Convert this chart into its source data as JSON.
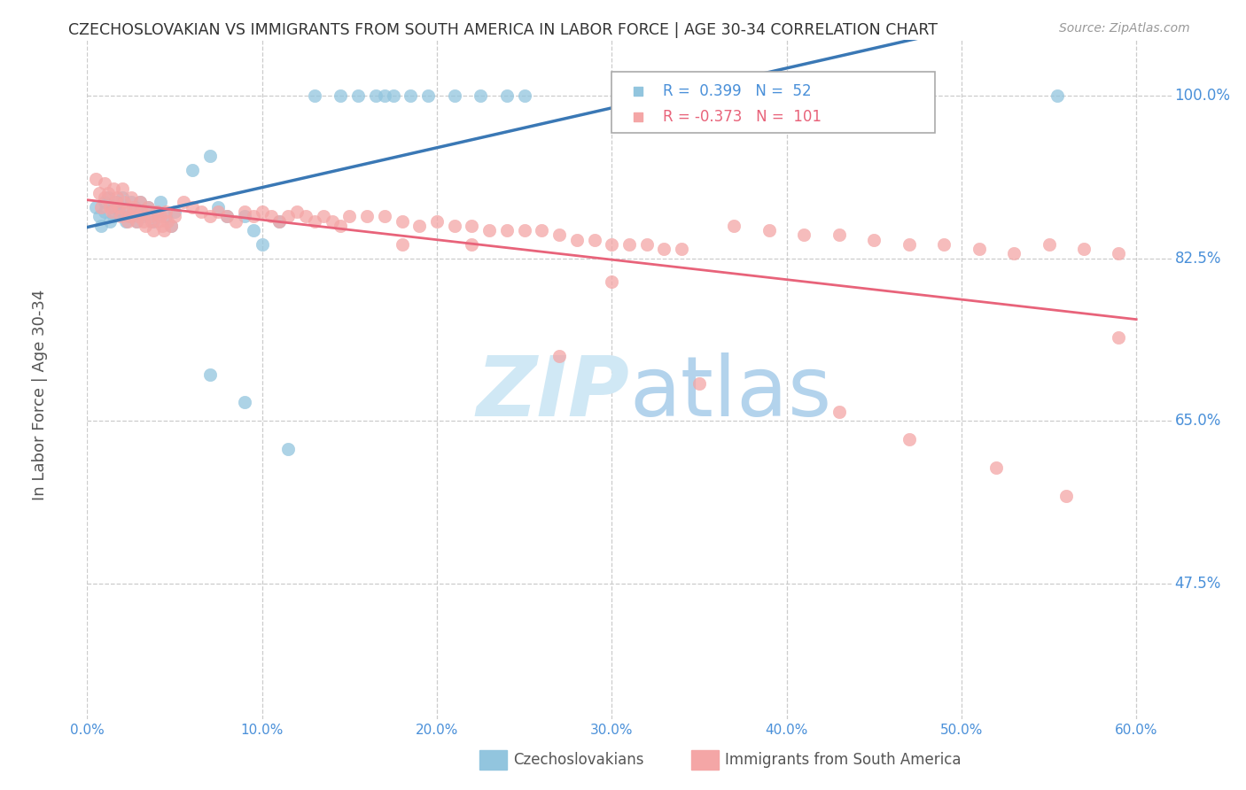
{
  "title": "CZECHOSLOVAKIAN VS IMMIGRANTS FROM SOUTH AMERICA IN LABOR FORCE | AGE 30-34 CORRELATION CHART",
  "source": "Source: ZipAtlas.com",
  "ylabel": "In Labor Force | Age 30-34",
  "xlabel_ticks": [
    "0.0%",
    "10.0%",
    "20.0%",
    "30.0%",
    "40.0%",
    "50.0%",
    "60.0%"
  ],
  "ylabel_ticks_vals": [
    0.475,
    0.65,
    0.825,
    1.0
  ],
  "ylabel_ticks_labels": [
    "47.5%",
    "65.0%",
    "82.5%",
    "100.0%"
  ],
  "xlim": [
    0.0,
    0.62
  ],
  "ylim": [
    0.33,
    1.06
  ],
  "legend_blue_label": "Czechoslovakians",
  "legend_pink_label": "Immigrants from South America",
  "blue_R": 0.399,
  "blue_N": 52,
  "pink_R": -0.373,
  "pink_N": 101,
  "blue_color": "#92c5de",
  "pink_color": "#f4a6a6",
  "blue_line_color": "#3a78b5",
  "pink_line_color": "#e8637a",
  "grid_color": "#cccccc",
  "background_color": "#ffffff",
  "title_color": "#333333",
  "source_color": "#999999",
  "axis_label_color": "#555555",
  "tick_label_color": "#4a90d9",
  "watermark_color": "#d0e8f5"
}
